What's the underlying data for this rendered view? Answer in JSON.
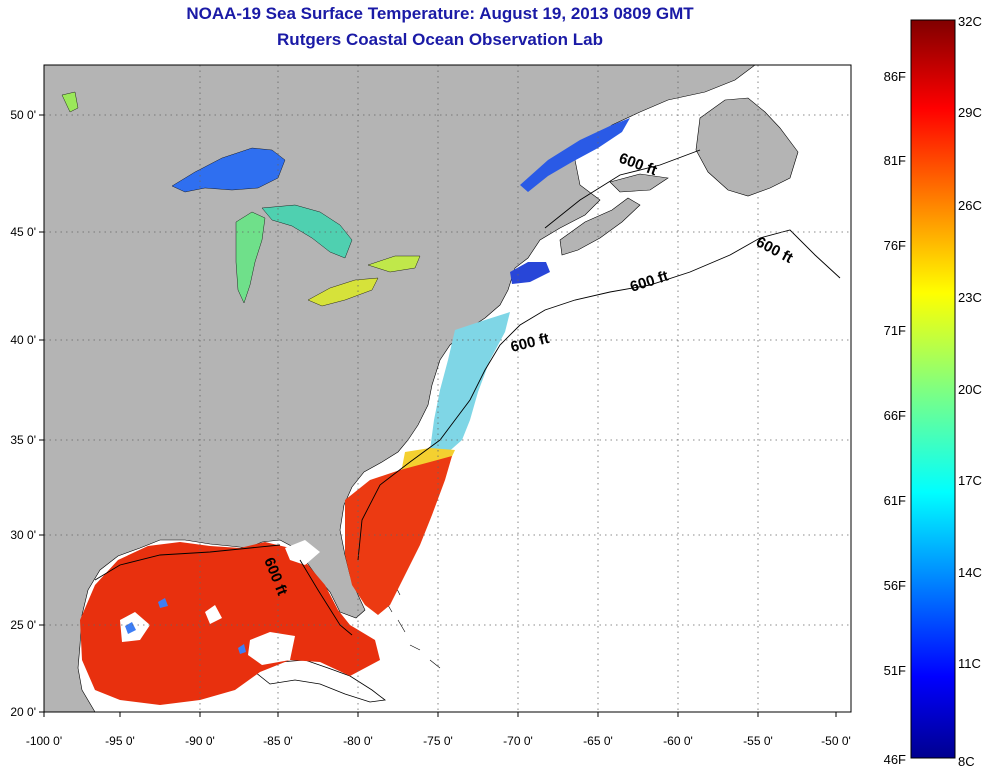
{
  "title": {
    "line1": "NOAA-19 Sea Surface Temperature:  August 19, 2013 0809 GMT",
    "line2": "Rutgers Coastal Ocean Observation Lab"
  },
  "map": {
    "lon_range": [
      -100,
      -50
    ],
    "lat_range": [
      20,
      52.5
    ],
    "x_ticks": [
      "-100 0'",
      "-95 0'",
      "-90 0'",
      "-85 0'",
      "-80 0'",
      "-75 0'",
      "-70 0'",
      "-65 0'",
      "-60 0'",
      "-55 0'",
      "-50 0'"
    ],
    "y_ticks": [
      "20 0'",
      "25 0'",
      "30 0'",
      "35 0'",
      "40 0'",
      "45 0'",
      "50 0'"
    ],
    "depth_contour_labels": [
      "600 ft",
      "600 ft",
      "600 ft",
      "600 ft",
      "600 ft"
    ],
    "land_color": "#b4b4b4"
  },
  "colorbar": {
    "celsius_labels": [
      "32C",
      "29C",
      "26C",
      "23C",
      "20C",
      "17C",
      "14C",
      "11C",
      "8C"
    ],
    "fahrenheit_labels": [
      "86F",
      "81F",
      "76F",
      "71F",
      "66F",
      "61F",
      "56F",
      "51F",
      "46F"
    ],
    "range_c": [
      8,
      32
    ],
    "colormap": "jet"
  }
}
